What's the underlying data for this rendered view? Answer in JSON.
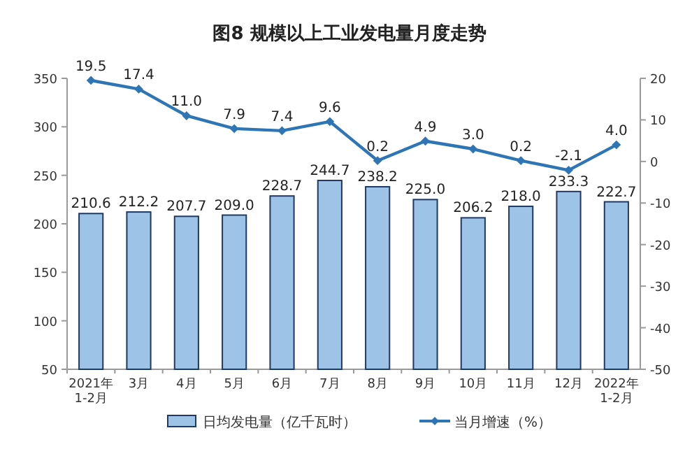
{
  "chart_data": {
    "type": "bar",
    "title": "图8  规模以上工业发电量月度走势",
    "categories": [
      "2021年\n1-2月",
      "3月",
      "4月",
      "5月",
      "6月",
      "7月",
      "8月",
      "9月",
      "10月",
      "11月",
      "12月",
      "2022年\n1-2月"
    ],
    "series": [
      {
        "name": "日均发电量（亿千瓦时）",
        "color": "#9dc3e6",
        "values": [
          210.6,
          212.2,
          207.7,
          209.0,
          228.7,
          244.7,
          238.2,
          225.0,
          206.2,
          218.0,
          233.3,
          222.7
        ],
        "value_labels": [
          "210.6",
          "212.2",
          "207.7",
          "209.0",
          "228.7",
          "244.7",
          "238.2",
          "225.0",
          "206.2",
          "218.0",
          "233.3",
          "222.7"
        ]
      },
      {
        "name": "当月增速（%）",
        "type": "line",
        "axis": "y2",
        "color": "#2e75b6",
        "values": [
          19.5,
          17.4,
          11.0,
          7.9,
          7.4,
          9.6,
          0.2,
          4.9,
          3.0,
          0.2,
          -2.1,
          4.0
        ],
        "value_labels": [
          "19.5",
          "17.4",
          "11.0",
          "7.9",
          "7.4",
          "9.6",
          "0.2",
          "4.9",
          "3.0",
          "0.2",
          "-2.1",
          "4.0"
        ]
      }
    ],
    "ylim": [
      50,
      350
    ],
    "yticks": [
      50,
      100,
      150,
      200,
      250,
      300,
      350
    ],
    "y2lim": [
      -50,
      20
    ],
    "y2ticks": [
      -50,
      -40,
      -30,
      -20,
      -10,
      0,
      10,
      20
    ],
    "legend": "bottom",
    "marker": "diamond",
    "line_style": "solid",
    "grid": false
  }
}
